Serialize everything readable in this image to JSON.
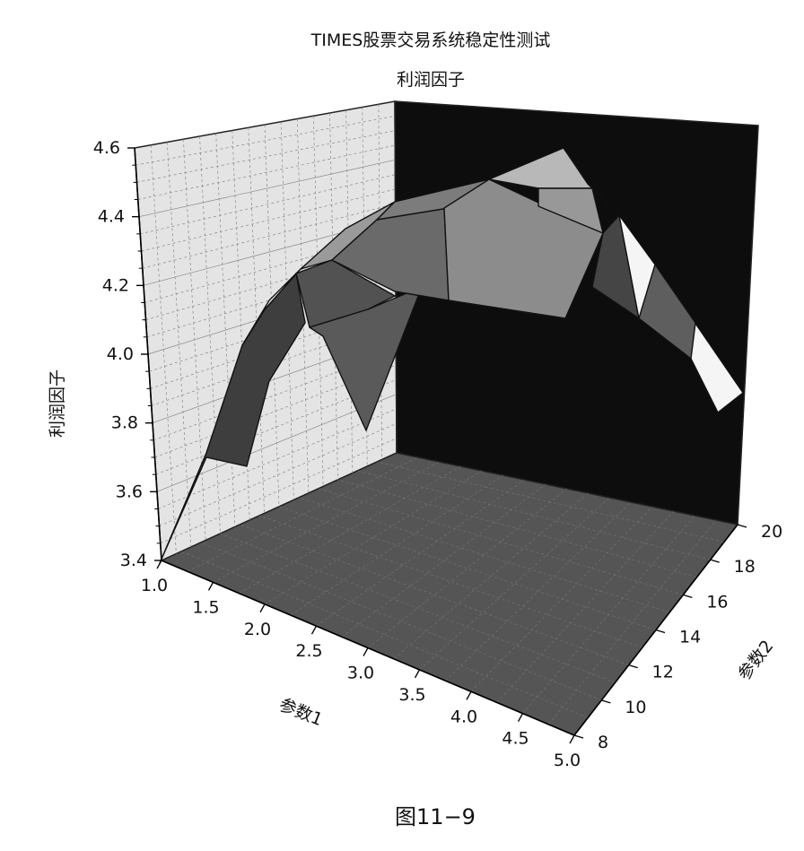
{
  "figure_label": "图11−9",
  "chart_data": {
    "type": "surface",
    "title": "TIMES股票交易系统稳定性测试",
    "subtitle": "利润因子",
    "zlabel": "利润因子",
    "xlabel": "参数1",
    "ylabel": "参数2",
    "z_ticks": [
      "3.4",
      "3.6",
      "3.8",
      "4.0",
      "4.2",
      "4.4",
      "4.6"
    ],
    "x_ticks": [
      "1.0",
      "1.5",
      "2.0",
      "2.5",
      "3.0",
      "3.5",
      "4.0",
      "4.5",
      "5.0"
    ],
    "y_ticks": [
      "8",
      "10",
      "12",
      "14",
      "16",
      "18",
      "20"
    ],
    "zlim": [
      3.4,
      4.6
    ],
    "xlim": [
      1.0,
      5.0
    ],
    "ylim": [
      8,
      20
    ],
    "grid": true,
    "colors": {
      "back_wall": "#0d0d0d",
      "floor": "#555555",
      "left_wall": "#e4e4e4",
      "surface_light": "#f2f2f2",
      "surface_dark": "#4a4a4a"
    }
  }
}
